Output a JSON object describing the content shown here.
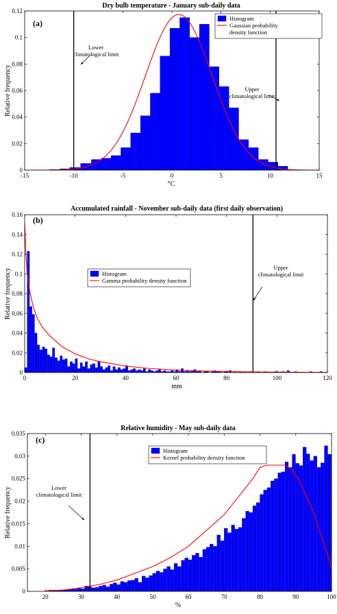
{
  "colors": {
    "bar": "#0000ff",
    "bar_edge": "#000080",
    "curve": "#ff0000",
    "limit": "#000000",
    "axis": "#000000"
  },
  "chart_data": [
    {
      "type": "bar",
      "panel_label": "(a)",
      "title": "Dry bulb temperature - January sub-daily data",
      "xlabel": "°C",
      "ylabel": "Relative frequency",
      "xlim": [
        -15,
        15
      ],
      "ylim": [
        0,
        0.12
      ],
      "xticks": [
        "-15",
        "-10",
        "-5",
        "0",
        "5",
        "10",
        "15"
      ],
      "yticks": [
        "0",
        "0.02",
        "0.04",
        "0.06",
        "0.08",
        "0.1",
        "0.12"
      ],
      "bin_edges": [
        -12.5,
        -11.4,
        -10.4,
        -9.3,
        -8.2,
        -7.2,
        -6.2,
        -5.2,
        -4.2,
        -3.2,
        -2.2,
        -1.2,
        -0.2,
        0.8,
        1.8,
        2.8,
        3.8,
        4.8,
        5.8,
        6.8,
        7.8,
        8.8,
        9.8,
        10.8,
        11.8
      ],
      "values": [
        0.0005,
        0.001,
        0.002,
        0.005,
        0.008,
        0.009,
        0.011,
        0.017,
        0.028,
        0.041,
        0.058,
        0.086,
        0.107,
        0.115,
        0.1,
        0.11,
        0.078,
        0.063,
        0.047,
        0.023,
        0.017,
        0.008,
        0.006,
        0.003,
        0.001
      ],
      "curve": {
        "name": "Gaussian probability density function",
        "kind": "gaussian",
        "mean": 0.7,
        "sd": 3.4,
        "scale": 1.0
      },
      "limits": [
        {
          "x": -10,
          "label": [
            "Lower",
            "climatological limit"
          ]
        },
        {
          "x": 10.6,
          "label": [
            "Upper",
            "climatological limit"
          ]
        }
      ],
      "legend": {
        "position": "top-right",
        "entries": [
          "Histogram",
          "Gaussian probability density function"
        ],
        "entry_lines": [
          [
            "Histogram"
          ],
          [
            "Gaussian probability",
            "density function"
          ]
        ]
      }
    },
    {
      "type": "bar",
      "panel_label": "(b)",
      "title": "Accumulated rainfall - November sub-daily data (first daily observation)",
      "xlabel": "mm",
      "ylabel": "Relative frequency",
      "xlim": [
        0,
        120
      ],
      "ylim": [
        0,
        0.16
      ],
      "xticks": [
        "0",
        "20",
        "40",
        "60",
        "80",
        "100",
        "120"
      ],
      "yticks": [
        "0",
        "0.02",
        "0.04",
        "0.06",
        "0.08",
        "0.1",
        "0.12",
        "0.14",
        "0.16"
      ],
      "bin_width": 1,
      "bin_start": 0,
      "values": [
        0.005,
        0.123,
        0.067,
        0.059,
        0.04,
        0.028,
        0.023,
        0.026,
        0.024,
        0.018,
        0.016,
        0.025,
        0.015,
        0.012,
        0.017,
        0.013,
        0.014,
        0.006,
        0.011,
        0.009,
        0.014,
        0.004,
        0.01,
        0.006,
        0.011,
        0.004,
        0.008,
        0.009,
        0.005,
        0.011,
        0.006,
        0.003,
        0.005,
        0.007,
        0.002,
        0.006,
        0.003,
        0.005,
        0.003,
        0.004,
        0.007,
        0.002,
        0.003,
        0.004,
        0.002,
        0.003,
        0.002,
        0.004,
        0.001,
        0.003,
        0.002,
        0.001,
        0.002,
        0.003,
        0.001,
        0.002,
        0.001,
        0.001,
        0.002,
        0.001,
        0.003,
        0.001,
        0.004,
        0.001,
        0.002,
        0.001,
        0.002,
        0.003,
        0.001,
        0.002,
        0.0,
        0.001,
        0.001,
        0.0,
        0.001,
        0.002,
        0.001,
        0.001,
        0.0,
        0.001,
        0.001,
        0.002,
        0.0,
        0.001,
        0.0,
        0.001,
        0.0,
        0.001,
        0.0,
        0.001,
        0.0,
        0.0,
        0.001,
        0.0,
        0.0,
        0.001,
        0.0,
        0.0,
        0.0,
        0.001,
        0.0,
        0.0,
        0.001,
        0.0,
        0.002,
        0.0,
        0.0,
        0.001,
        0.0,
        0.0,
        0.0,
        0.0,
        0.0,
        0.001,
        0.0,
        0.0,
        0.0,
        0.001,
        0.0,
        0.0
      ],
      "curve": {
        "name": "Gamma probability density function",
        "kind": "points",
        "x": [
          0,
          0.5,
          1,
          2,
          3,
          4,
          5,
          7,
          10,
          15,
          20,
          25,
          30,
          40,
          50,
          60,
          70,
          80,
          90,
          100,
          110,
          120
        ],
        "y": [
          0.152,
          0.12,
          0.1,
          0.083,
          0.071,
          0.062,
          0.055,
          0.046,
          0.037,
          0.026,
          0.019,
          0.014,
          0.011,
          0.0065,
          0.004,
          0.0025,
          0.0015,
          0.001,
          0.0006,
          0.0004,
          0.0002,
          0.0001
        ]
      },
      "limits": [
        {
          "x": 90.5,
          "label": [
            "Upper",
            "climatological limit"
          ]
        }
      ],
      "legend": {
        "position": "center",
        "entries": [
          "Histogram",
          "Gamma probability density function"
        ],
        "entry_lines": [
          [
            "Histogram"
          ],
          [
            "Gamma probability density function"
          ]
        ]
      }
    },
    {
      "type": "bar",
      "panel_label": "(c)",
      "title": "Relative humidity - May sub-daily data",
      "xlabel": "%",
      "ylabel": "Relative frequency",
      "xlim": [
        15,
        100
      ],
      "ylim": [
        0,
        0.035
      ],
      "xticks": [
        "20",
        "30",
        "40",
        "50",
        "60",
        "70",
        "80",
        "90",
        "100"
      ],
      "ytick_values": [
        0,
        0.005,
        0.01,
        0.015,
        0.02,
        0.025,
        0.03,
        0.035
      ],
      "yticks": [
        "0",
        "0.005",
        "0.01",
        "0.015",
        "0.02",
        "0.025",
        "0.03",
        "0.035"
      ],
      "bin_width": 1,
      "bin_start": 21,
      "values": [
        0.0003,
        0.0003,
        0.0002,
        0.0003,
        0.0003,
        0.0004,
        0.0005,
        0.0005,
        0.0008,
        0.0006,
        0.0012,
        0.001,
        0.0008,
        0.0009,
        0.0012,
        0.0014,
        0.001,
        0.0016,
        0.0019,
        0.0015,
        0.0022,
        0.002,
        0.0024,
        0.0025,
        0.0029,
        0.002,
        0.0034,
        0.003,
        0.0035,
        0.004,
        0.0045,
        0.0042,
        0.005,
        0.0055,
        0.0048,
        0.0062,
        0.0055,
        0.0069,
        0.0074,
        0.007,
        0.008,
        0.0085,
        0.0076,
        0.0093,
        0.0098,
        0.0105,
        0.01,
        0.0125,
        0.0112,
        0.014,
        0.013,
        0.0147,
        0.0138,
        0.0142,
        0.0162,
        0.0178,
        0.0175,
        0.019,
        0.0197,
        0.0215,
        0.0225,
        0.023,
        0.0245,
        0.025,
        0.0263,
        0.0265,
        0.0287,
        0.0275,
        0.0304,
        0.0284,
        0.0279,
        0.032,
        0.0305,
        0.029,
        0.03,
        0.0275,
        0.0285,
        0.0323,
        0.0304,
        0.0305,
        0.0285,
        0.027,
        0.025,
        0.023,
        0.02,
        0.017,
        0.015,
        0.012
      ],
      "curve": {
        "name": "Kernel probability density function",
        "kind": "points",
        "x": [
          20,
          25,
          30,
          35,
          40,
          45,
          50,
          55,
          60,
          65,
          70,
          75,
          78,
          80,
          82,
          85,
          87,
          89,
          91,
          93,
          95,
          97,
          99,
          100
        ],
        "y": [
          0.0001,
          0.0003,
          0.0008,
          0.0015,
          0.0025,
          0.004,
          0.0055,
          0.0075,
          0.01,
          0.0135,
          0.017,
          0.022,
          0.025,
          0.0275,
          0.028,
          0.028,
          0.028,
          0.027,
          0.0245,
          0.021,
          0.0175,
          0.0125,
          0.008,
          0.005
        ]
      },
      "limits": [
        {
          "x": 32.5,
          "label": [
            "Lower",
            "climatological limit"
          ]
        }
      ],
      "legend": {
        "position": "top",
        "entries": [
          "Histogram",
          "Kernel probability density function"
        ],
        "entry_lines": [
          [
            "Histogram"
          ],
          [
            "Kernel probability density function"
          ]
        ]
      }
    }
  ]
}
